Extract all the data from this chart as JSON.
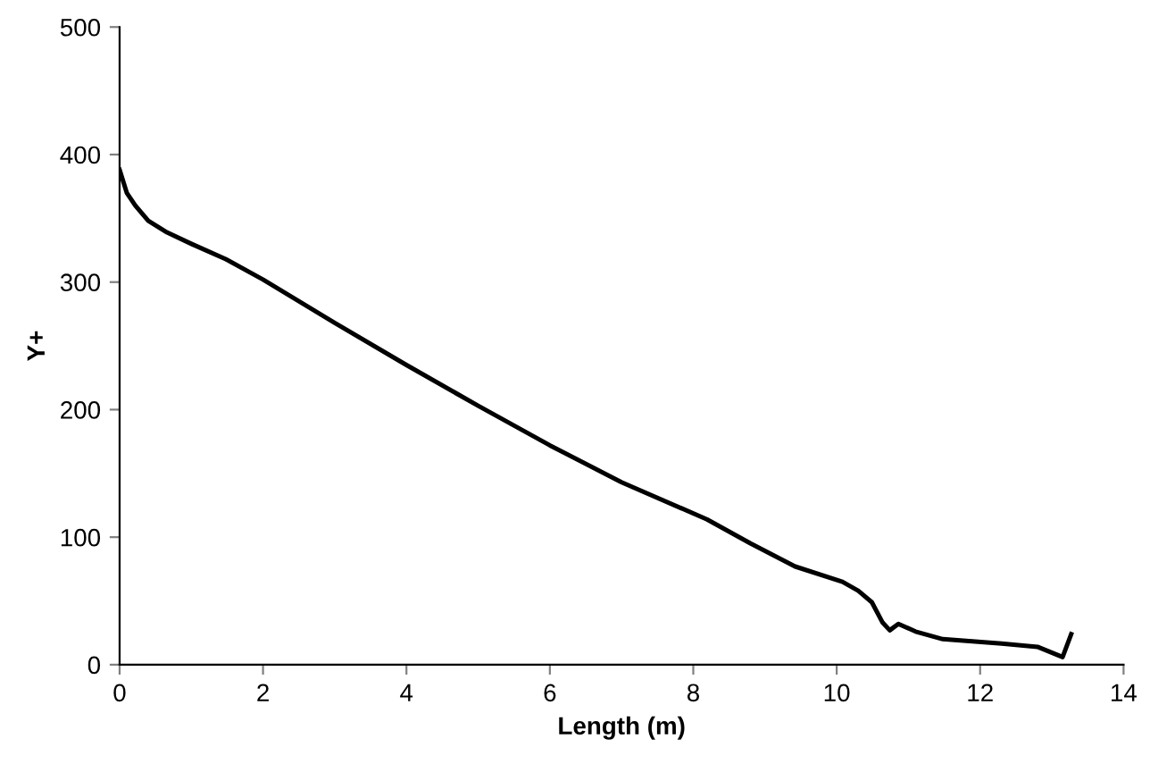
{
  "chart_data": {
    "type": "line",
    "xlabel": "Length (m)",
    "ylabel": "Y+",
    "xlim": [
      0,
      14
    ],
    "xticks": [
      0,
      2,
      4,
      6,
      8,
      10,
      12,
      14
    ],
    "ylim": [
      0,
      500
    ],
    "yticks": [
      0,
      100,
      200,
      300,
      400,
      500
    ],
    "grid": false,
    "legend": false,
    "series": [
      {
        "color": "#000000",
        "x": [
          0,
          0.1,
          0.22,
          0.4,
          0.66,
          1.0,
          1.48,
          2.0,
          3.0,
          4.0,
          5.0,
          6.0,
          7.0,
          8.19,
          8.8,
          9.42,
          10.08,
          10.3,
          10.49,
          10.64,
          10.74,
          10.86,
          11.1,
          11.48,
          12.3,
          12.8,
          13.15,
          13.27
        ],
        "values": [
          388,
          370,
          360,
          348,
          339,
          330,
          318,
          302,
          268,
          235,
          203,
          172,
          143,
          114,
          95,
          77,
          65,
          58,
          49,
          33,
          27,
          32,
          26,
          20,
          16.5,
          14,
          6,
          24
        ]
      }
    ]
  }
}
